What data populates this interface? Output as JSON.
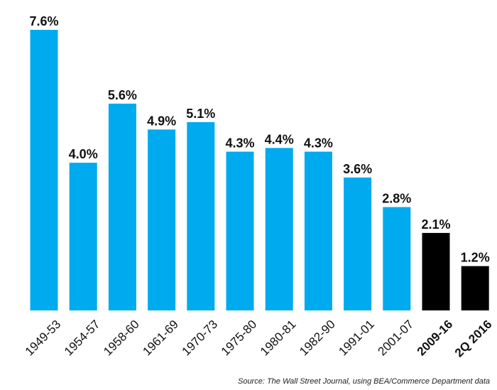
{
  "chart_data": {
    "type": "bar",
    "categories": [
      "1949-53",
      "1954-57",
      "1958-60",
      "1961-69",
      "1970-73",
      "1975-80",
      "1980-81",
      "1982-90",
      "1991-01",
      "2001-07",
      "2009-16",
      "2Q 2016"
    ],
    "values": [
      7.6,
      4.0,
      5.6,
      4.9,
      5.1,
      4.3,
      4.4,
      4.3,
      3.6,
      2.8,
      2.1,
      1.2
    ],
    "value_labels": [
      "7.6%",
      "4.0%",
      "5.6%",
      "4.9%",
      "5.1%",
      "4.3%",
      "4.4%",
      "4.3%",
      "3.6%",
      "2.8%",
      "2.1%",
      "1.2%"
    ],
    "highlighted": [
      false,
      false,
      false,
      false,
      false,
      false,
      false,
      false,
      false,
      false,
      true,
      true
    ],
    "colors": {
      "default": "#00aaee",
      "highlight": "#000000"
    },
    "title": "",
    "xlabel": "",
    "ylabel": "",
    "ylim": [
      0,
      7.6
    ],
    "grid": false,
    "source": "Source: The Wall Street Journal, using BEA/Commerce Department data"
  }
}
